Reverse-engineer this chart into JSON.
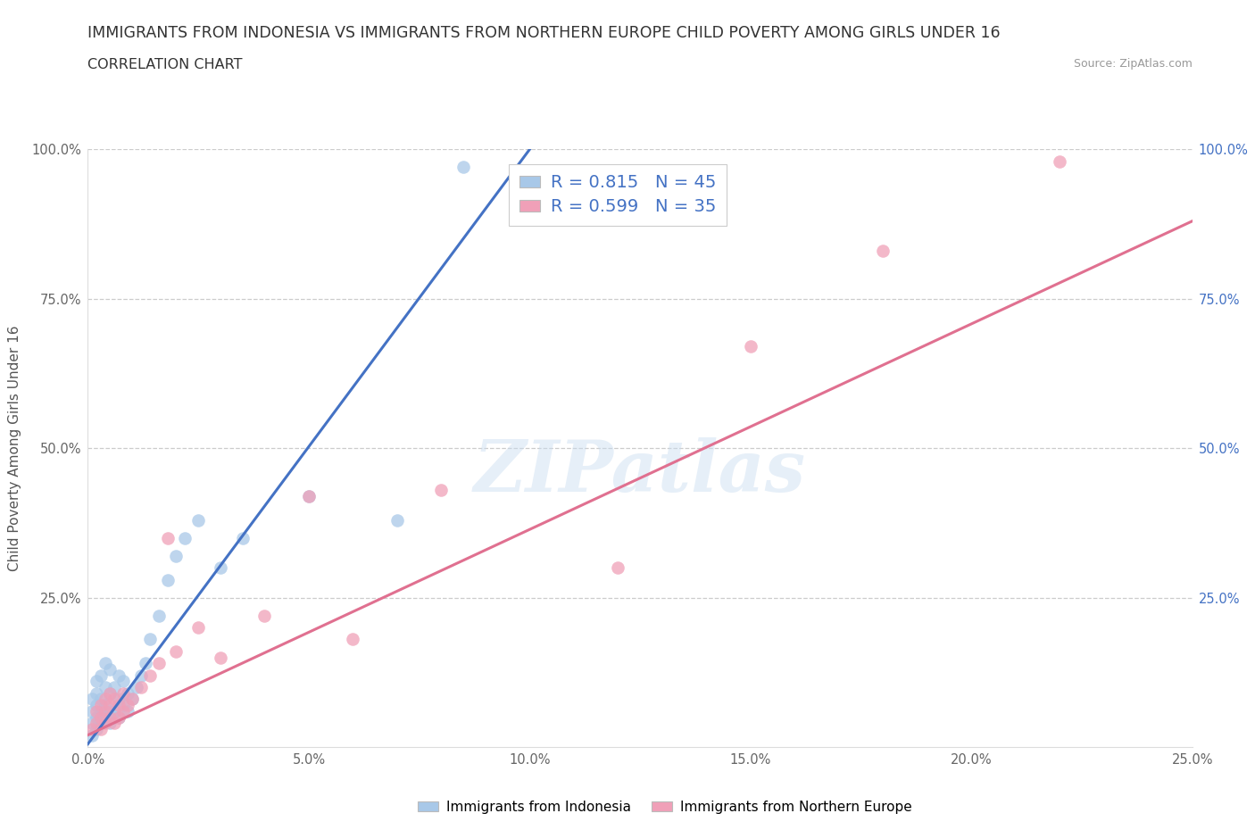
{
  "title": "IMMIGRANTS FROM INDONESIA VS IMMIGRANTS FROM NORTHERN EUROPE CHILD POVERTY AMONG GIRLS UNDER 16",
  "subtitle": "CORRELATION CHART",
  "source": "Source: ZipAtlas.com",
  "ylabel": "Child Poverty Among Girls Under 16",
  "xlim": [
    0.0,
    0.25
  ],
  "ylim": [
    0.0,
    1.0
  ],
  "xticks": [
    0.0,
    0.05,
    0.1,
    0.15,
    0.2,
    0.25
  ],
  "xticklabels": [
    "0.0%",
    "5.0%",
    "10.0%",
    "15.0%",
    "20.0%",
    "25.0%"
  ],
  "yticks": [
    0.0,
    0.25,
    0.5,
    0.75,
    1.0
  ],
  "ylabels_left": [
    "",
    "25.0%",
    "50.0%",
    "75.0%",
    "100.0%"
  ],
  "ylabels_right": [
    "",
    "25.0%",
    "50.0%",
    "75.0%",
    "100.0%"
  ],
  "watermark": "ZIPatlas",
  "blue_color": "#A8C8E8",
  "pink_color": "#F0A0B8",
  "blue_line_color": "#4472C4",
  "pink_line_color": "#E07090",
  "legend_R_blue": "0.815",
  "legend_N_blue": "45",
  "legend_R_pink": "0.599",
  "legend_N_pink": "35",
  "legend_label_blue": "Immigrants from Indonesia",
  "legend_label_pink": "Immigrants from Northern Europe",
  "blue_line_x": [
    0.0,
    0.1
  ],
  "blue_line_y": [
    0.005,
    1.0
  ],
  "pink_line_x": [
    0.0,
    0.25
  ],
  "pink_line_y": [
    0.02,
    0.88
  ],
  "blue_x": [
    0.001,
    0.001,
    0.001,
    0.001,
    0.002,
    0.002,
    0.002,
    0.002,
    0.002,
    0.003,
    0.003,
    0.003,
    0.003,
    0.004,
    0.004,
    0.004,
    0.004,
    0.005,
    0.005,
    0.005,
    0.005,
    0.006,
    0.006,
    0.007,
    0.007,
    0.007,
    0.008,
    0.008,
    0.009,
    0.009,
    0.01,
    0.011,
    0.012,
    0.013,
    0.014,
    0.016,
    0.018,
    0.02,
    0.022,
    0.025,
    0.03,
    0.035,
    0.05,
    0.07,
    0.085
  ],
  "blue_y": [
    0.02,
    0.04,
    0.06,
    0.08,
    0.03,
    0.05,
    0.07,
    0.09,
    0.11,
    0.04,
    0.06,
    0.08,
    0.12,
    0.05,
    0.07,
    0.1,
    0.14,
    0.04,
    0.06,
    0.09,
    0.13,
    0.06,
    0.1,
    0.05,
    0.08,
    0.12,
    0.07,
    0.11,
    0.06,
    0.09,
    0.08,
    0.1,
    0.12,
    0.14,
    0.18,
    0.22,
    0.28,
    0.32,
    0.35,
    0.38,
    0.3,
    0.35,
    0.42,
    0.38,
    0.97
  ],
  "pink_x": [
    0.001,
    0.002,
    0.002,
    0.003,
    0.003,
    0.003,
    0.004,
    0.004,
    0.004,
    0.005,
    0.005,
    0.005,
    0.006,
    0.006,
    0.007,
    0.007,
    0.008,
    0.008,
    0.009,
    0.01,
    0.012,
    0.014,
    0.016,
    0.018,
    0.02,
    0.025,
    0.03,
    0.04,
    0.05,
    0.06,
    0.08,
    0.12,
    0.15,
    0.18,
    0.22
  ],
  "pink_y": [
    0.03,
    0.04,
    0.06,
    0.03,
    0.05,
    0.07,
    0.04,
    0.06,
    0.08,
    0.05,
    0.07,
    0.09,
    0.04,
    0.08,
    0.05,
    0.07,
    0.06,
    0.09,
    0.07,
    0.08,
    0.1,
    0.12,
    0.14,
    0.35,
    0.16,
    0.2,
    0.15,
    0.22,
    0.42,
    0.18,
    0.43,
    0.3,
    0.67,
    0.83,
    0.98
  ],
  "background_color": "#FFFFFF",
  "grid_color": "#CCCCCC",
  "title_fontsize": 12.5,
  "subtitle_fontsize": 11.5,
  "source_fontsize": 9,
  "axis_label_fontsize": 11,
  "tick_fontsize": 10.5
}
